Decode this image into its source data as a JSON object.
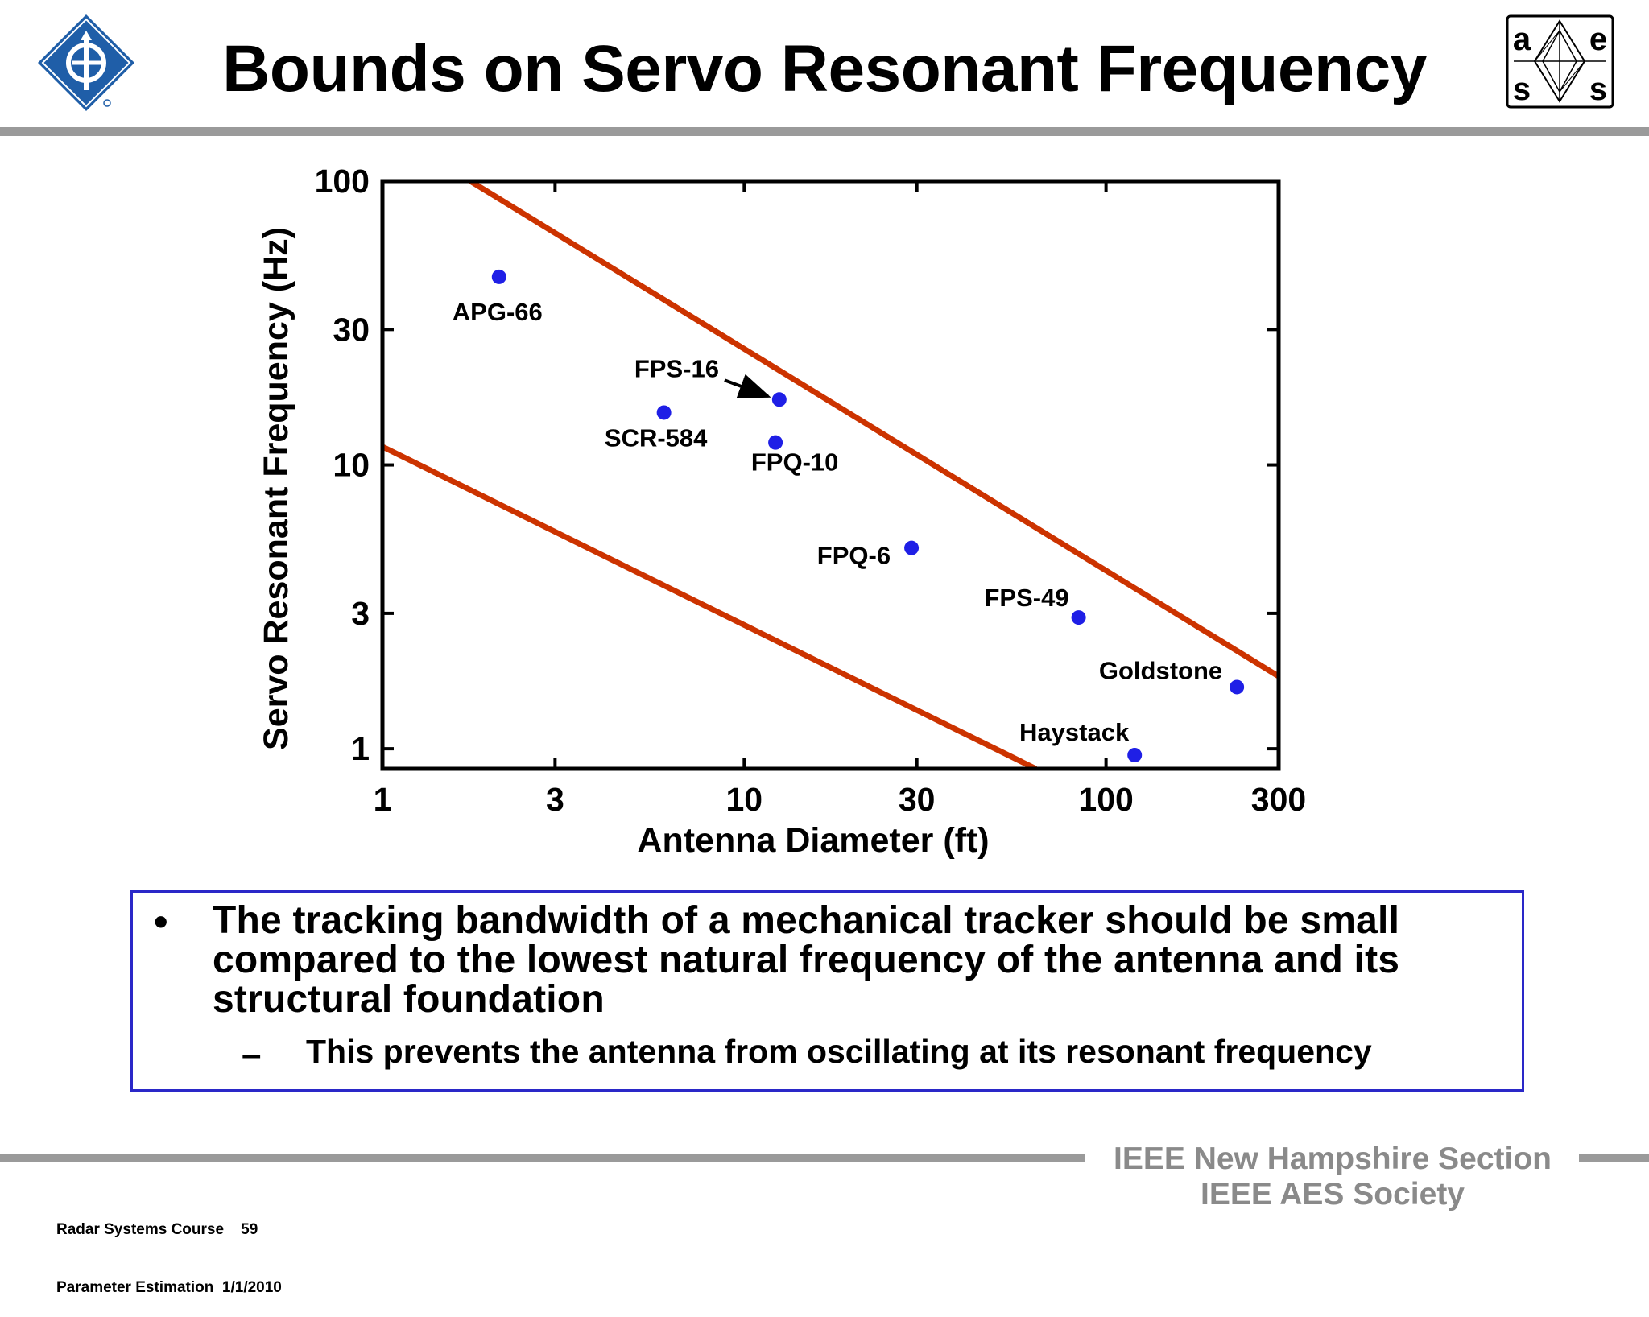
{
  "header": {
    "title": "Bounds on Servo Resonant Frequency",
    "left_logo_icon": "ieee-diamond-logo-icon",
    "right_logo_icon": "aess-logo-icon",
    "right_logo_letters": [
      "a",
      "e",
      "s",
      "s"
    ]
  },
  "chart_data": {
    "type": "scatter",
    "xlabel": "Antenna Diameter (ft)",
    "ylabel": "Servo Resonant Frequency (Hz)",
    "xscale": "log",
    "yscale": "log",
    "xlim": [
      1,
      300
    ],
    "ylim": [
      0.85,
      100
    ],
    "xticks": [
      1,
      3,
      10,
      30,
      100,
      300
    ],
    "xtick_labels": [
      "1",
      "3",
      "10",
      "30",
      "100",
      "300"
    ],
    "yticks": [
      1,
      3,
      10,
      30,
      100
    ],
    "ytick_labels": [
      "1",
      "3",
      "10",
      "30",
      "100"
    ],
    "point_color": "#1f1fe6",
    "line_color": "#cc3300",
    "points": [
      {
        "label": "APG-66",
        "x": 2.1,
        "y": 46
      },
      {
        "label": "FPS-16",
        "x": 12.5,
        "y": 17
      },
      {
        "label": "SCR-584",
        "x": 6.0,
        "y": 15.3
      },
      {
        "label": "FPQ-10",
        "x": 12.2,
        "y": 12
      },
      {
        "label": "FPQ-6",
        "x": 29,
        "y": 5.1
      },
      {
        "label": "FPS-49",
        "x": 84,
        "y": 2.9
      },
      {
        "label": "Goldstone",
        "x": 230,
        "y": 1.65
      },
      {
        "label": "Haystack",
        "x": 120,
        "y": 0.95
      }
    ],
    "bound_lines": [
      {
        "x": [
          1.75,
          300
        ],
        "y": [
          100,
          1.8
        ]
      },
      {
        "x": [
          1,
          64
        ],
        "y": [
          11.6,
          0.85
        ]
      }
    ]
  },
  "bullets": {
    "main": "The tracking bandwidth of a mechanical tracker should be small compared to the lowest natural frequency of the antenna and its structural foundation",
    "sub": "This prevents the antenna from oscillating at its resonant frequency",
    "bullet_glyph": "•",
    "dash_glyph": "–"
  },
  "footer": {
    "org_line1": "IEEE New Hampshire Section",
    "org_line2": "IEEE AES Society",
    "course_line1": "Radar Systems Course    59",
    "course_line2": "Parameter Estimation  1/1/2010"
  }
}
